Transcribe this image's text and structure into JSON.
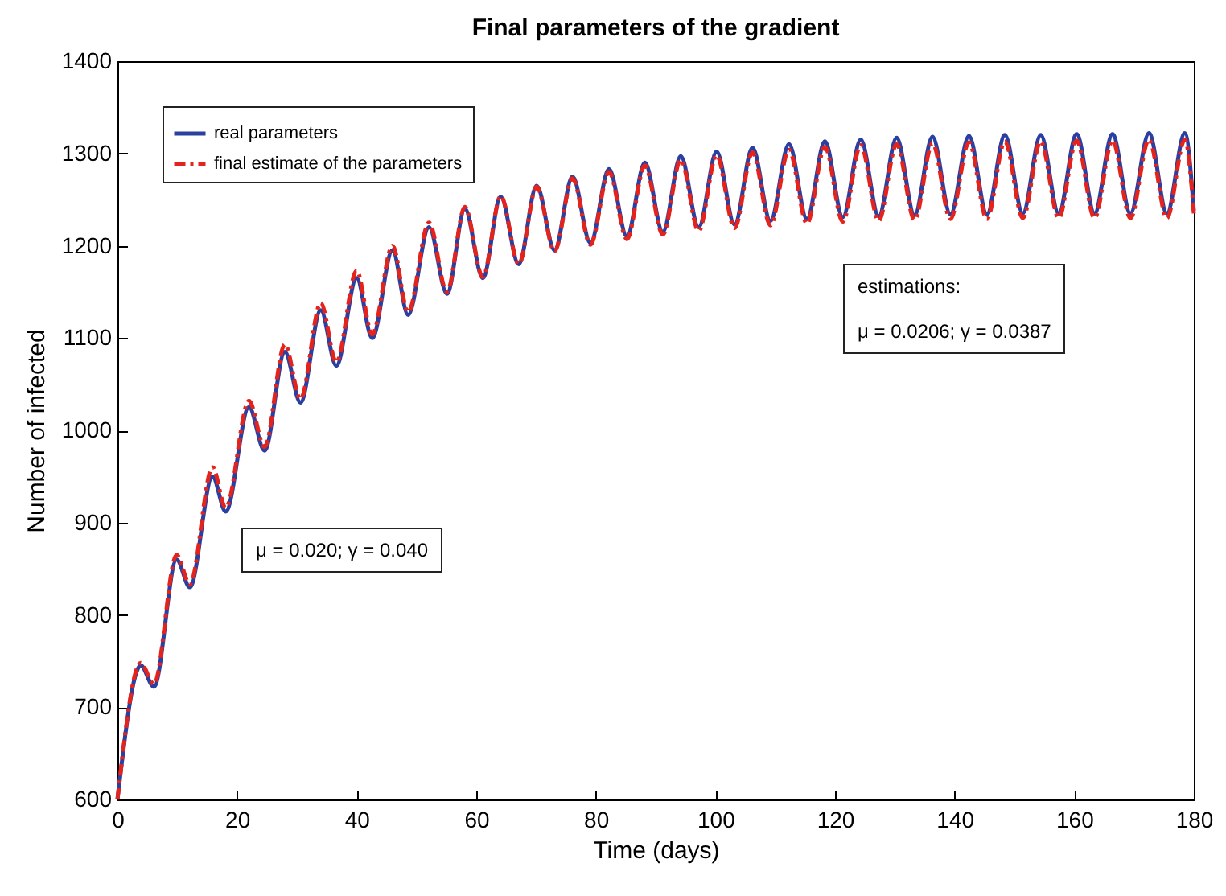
{
  "chart_data": {
    "type": "line",
    "title": "Final parameters of the gradient",
    "xlabel": "Time (days)",
    "ylabel": "Number of infected",
    "x": [
      0,
      3.9,
      6.1,
      9.9,
      12.1,
      15.9,
      18.1,
      22.0,
      24.6,
      28.0,
      30.6,
      34.0,
      36.6,
      40.0,
      42.6,
      46.0,
      48.6,
      52.1,
      55.1,
      58.1,
      61.1,
      64.1,
      67.1,
      70.1,
      73.1,
      76.1,
      79.1,
      82.2,
      85.2,
      88.2,
      91.2,
      94.2,
      97.2,
      100.2,
      103.2,
      106.2,
      109.2,
      112.3,
      115.3,
      118.3,
      121.3,
      124.3,
      127.3,
      130.3,
      133.3,
      136.3,
      139.3,
      142.4,
      145.4,
      148.4,
      151.4,
      154.4,
      157.4,
      160.4,
      163.4,
      166.4,
      169.4,
      172.5,
      175.5,
      178.5,
      180
    ],
    "series": [
      {
        "name": "real parameters",
        "color": "#2a3fa0",
        "line_style": "solid",
        "values": [
          600,
          745,
          722,
          860,
          830,
          950,
          912,
          1025,
          978,
          1085,
          1030,
          1130,
          1070,
          1165,
          1100,
          1195,
          1125,
          1220,
          1148,
          1240,
          1165,
          1253,
          1180,
          1265,
          1195,
          1275,
          1203,
          1283,
          1210,
          1290,
          1215,
          1297,
          1220,
          1302,
          1223,
          1306,
          1227,
          1310,
          1229,
          1313,
          1231,
          1315,
          1232,
          1317,
          1233,
          1318,
          1234,
          1319,
          1234,
          1320,
          1235,
          1320,
          1235,
          1321,
          1235,
          1321,
          1235,
          1322,
          1235,
          1322,
          1238
        ]
      },
      {
        "name": "final estimate of the parameters",
        "color": "#e3231c",
        "line_style": "dashed",
        "values": [
          600,
          748,
          725,
          865,
          833,
          960,
          916,
          1032,
          982,
          1093,
          1034,
          1138,
          1074,
          1173,
          1104,
          1200,
          1128,
          1225,
          1150,
          1242,
          1166,
          1254,
          1180,
          1264,
          1194,
          1273,
          1201,
          1280,
          1207,
          1287,
          1212,
          1293,
          1216,
          1298,
          1219,
          1301,
          1222,
          1304,
          1224,
          1307,
          1226,
          1309,
          1227,
          1310,
          1228,
          1311,
          1229,
          1312,
          1229,
          1313,
          1230,
          1313,
          1230,
          1314,
          1230,
          1314,
          1230,
          1315,
          1230,
          1315,
          1235
        ]
      }
    ],
    "xlim": [
      0,
      180
    ],
    "xticks": [
      0,
      20,
      40,
      60,
      80,
      100,
      120,
      140,
      160,
      180
    ],
    "ylim": [
      600,
      1400
    ],
    "yticks": [
      600,
      700,
      800,
      900,
      1000,
      1100,
      1200,
      1300,
      1400
    ],
    "grid": false,
    "legend": "top left",
    "marker": "none",
    "annotations": [
      "μ = 0.020;  γ = 0.040",
      "estimations:",
      "μ = 0.0206;  γ = 0.0387"
    ]
  }
}
